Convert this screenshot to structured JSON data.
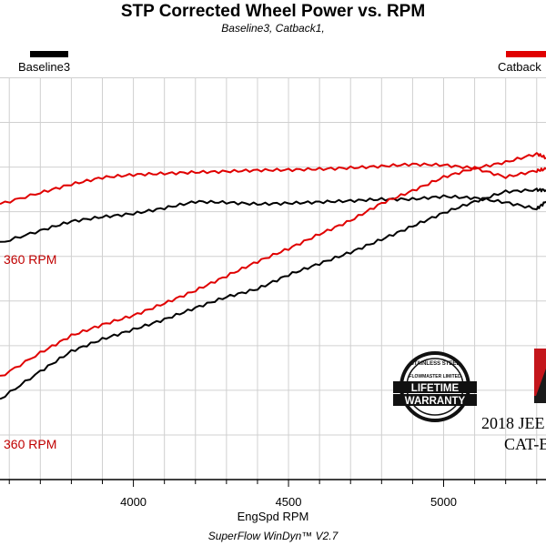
{
  "title": "STP Corrected Wheel Power vs. RPM",
  "subtitle": "Baseline3, Catback1,",
  "legend": [
    {
      "label": "Baseline3",
      "color": "#000000"
    },
    {
      "label": "Catback",
      "color": "#e00000"
    }
  ],
  "annotations": {
    "upper": "360 RPM",
    "lower": "360 RPM"
  },
  "vehicle_text": {
    "line1": "2018 JEE",
    "line2": "CAT-B"
  },
  "badge": {
    "top": "STAINLESS STEEL",
    "mid": "FLOWMASTER LIMITED",
    "line1": "LIFETIME",
    "line2": "WARRANTY"
  },
  "footer": "SuperFlow WinDyn™  V2.7",
  "chart_data": {
    "type": "line",
    "title": "STP Corrected Wheel Power vs. RPM",
    "xlabel": "EngSpd  RPM",
    "ylabel": "",
    "xlim": [
      3570,
      5330
    ],
    "ylim": [
      0,
      100
    ],
    "xticks": [
      4000,
      4500,
      5000
    ],
    "grid": true,
    "series": [
      {
        "name": "Catback (upper)",
        "color": "#e00000",
        "x": [
          3570,
          3700,
          3800,
          3900,
          4000,
          4100,
          4200,
          4300,
          4400,
          4500,
          4600,
          4700,
          4800,
          4900,
          5000,
          5100,
          5200,
          5300,
          5330
        ],
        "y": [
          68.5,
          71.3,
          73.4,
          75.1,
          75.8,
          76.1,
          76.4,
          76.6,
          76.9,
          77.0,
          77.2,
          77.5,
          77.9,
          78.4,
          78.2,
          77.4,
          75.2,
          76.8,
          77.2
        ]
      },
      {
        "name": "Baseline3 (upper)",
        "color": "#000000",
        "x": [
          3570,
          3700,
          3800,
          3900,
          4000,
          4100,
          4200,
          4300,
          4400,
          4500,
          4600,
          4700,
          4800,
          4900,
          5000,
          5100,
          5200,
          5300,
          5330
        ],
        "y": [
          58.8,
          61.9,
          64.2,
          65.3,
          66.1,
          67.5,
          69.1,
          68.9,
          68.5,
          68.7,
          69.0,
          69.3,
          69.7,
          69.7,
          70.4,
          70.0,
          68.9,
          67.3,
          69.1
        ]
      },
      {
        "name": "Catback (lower)",
        "color": "#e00000",
        "x": [
          3570,
          3700,
          3800,
          3900,
          4000,
          4100,
          4200,
          4300,
          4400,
          4500,
          4600,
          4700,
          4800,
          4900,
          5000,
          5100,
          5200,
          5300,
          5330
        ],
        "y": [
          25.5,
          31.5,
          35.8,
          38.5,
          40.8,
          43.8,
          47.0,
          50.6,
          54.2,
          57.4,
          61.0,
          64.4,
          68.7,
          71.8,
          75.2,
          77.4,
          78.9,
          81.0,
          80.0
        ]
      },
      {
        "name": "Baseline3 (lower)",
        "color": "#000000",
        "x": [
          3570,
          3700,
          3800,
          3900,
          4000,
          4100,
          4200,
          4300,
          4400,
          4500,
          4600,
          4700,
          4800,
          4900,
          5000,
          5100,
          5200,
          5300,
          5330
        ],
        "y": [
          20.0,
          26.9,
          31.9,
          34.9,
          37.3,
          39.8,
          42.7,
          45.4,
          47.4,
          50.9,
          53.7,
          56.5,
          59.7,
          63.0,
          66.3,
          69.1,
          71.6,
          72.0,
          72.0
        ]
      }
    ]
  }
}
